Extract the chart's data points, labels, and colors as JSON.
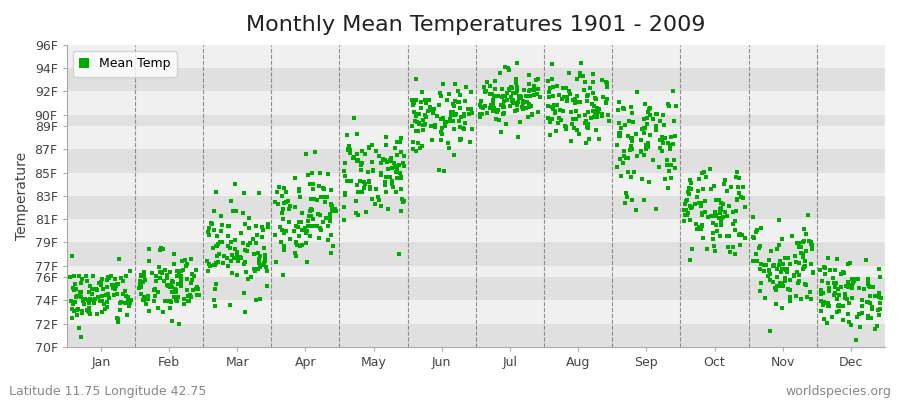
{
  "title": "Monthly Mean Temperatures 1901 - 2009",
  "ylabel": "Temperature",
  "xlabel_labels": [
    "Jan",
    "Feb",
    "Mar",
    "Apr",
    "May",
    "Jun",
    "Jul",
    "Aug",
    "Sep",
    "Oct",
    "Nov",
    "Dec"
  ],
  "ytick_labels": [
    "70F",
    "72F",
    "74F",
    "76F",
    "77F",
    "79F",
    "81F",
    "83F",
    "85F",
    "87F",
    "89F",
    "90F",
    "92F",
    "94F",
    "96F"
  ],
  "ytick_values": [
    70,
    72,
    74,
    76,
    77,
    79,
    81,
    83,
    85,
    87,
    89,
    90,
    92,
    94,
    96
  ],
  "ylim": [
    70,
    96
  ],
  "dot_color": "#00aa00",
  "dot_size": 5,
  "background_color": "#ffffff",
  "plot_bg_light": "#f0f0f0",
  "plot_bg_dark": "#e0e0e0",
  "vgrid_color": "#666666",
  "title_fontsize": 16,
  "axis_label_fontsize": 10,
  "tick_fontsize": 9,
  "subtitle_left": "Latitude 11.75 Longitude 42.75",
  "subtitle_right": "worldspecies.org",
  "subtitle_fontsize": 9,
  "legend_label": "Mean Temp",
  "seed": 42,
  "monthly_mean_temps_f": [
    74.3,
    75.2,
    78.5,
    81.5,
    85.0,
    89.5,
    91.5,
    90.5,
    87.5,
    81.8,
    77.0,
    74.5
  ],
  "monthly_std_temps_f": [
    1.3,
    1.5,
    2.0,
    2.0,
    2.0,
    1.5,
    1.2,
    1.5,
    2.5,
    2.0,
    2.0,
    1.5
  ],
  "n_years": 109
}
